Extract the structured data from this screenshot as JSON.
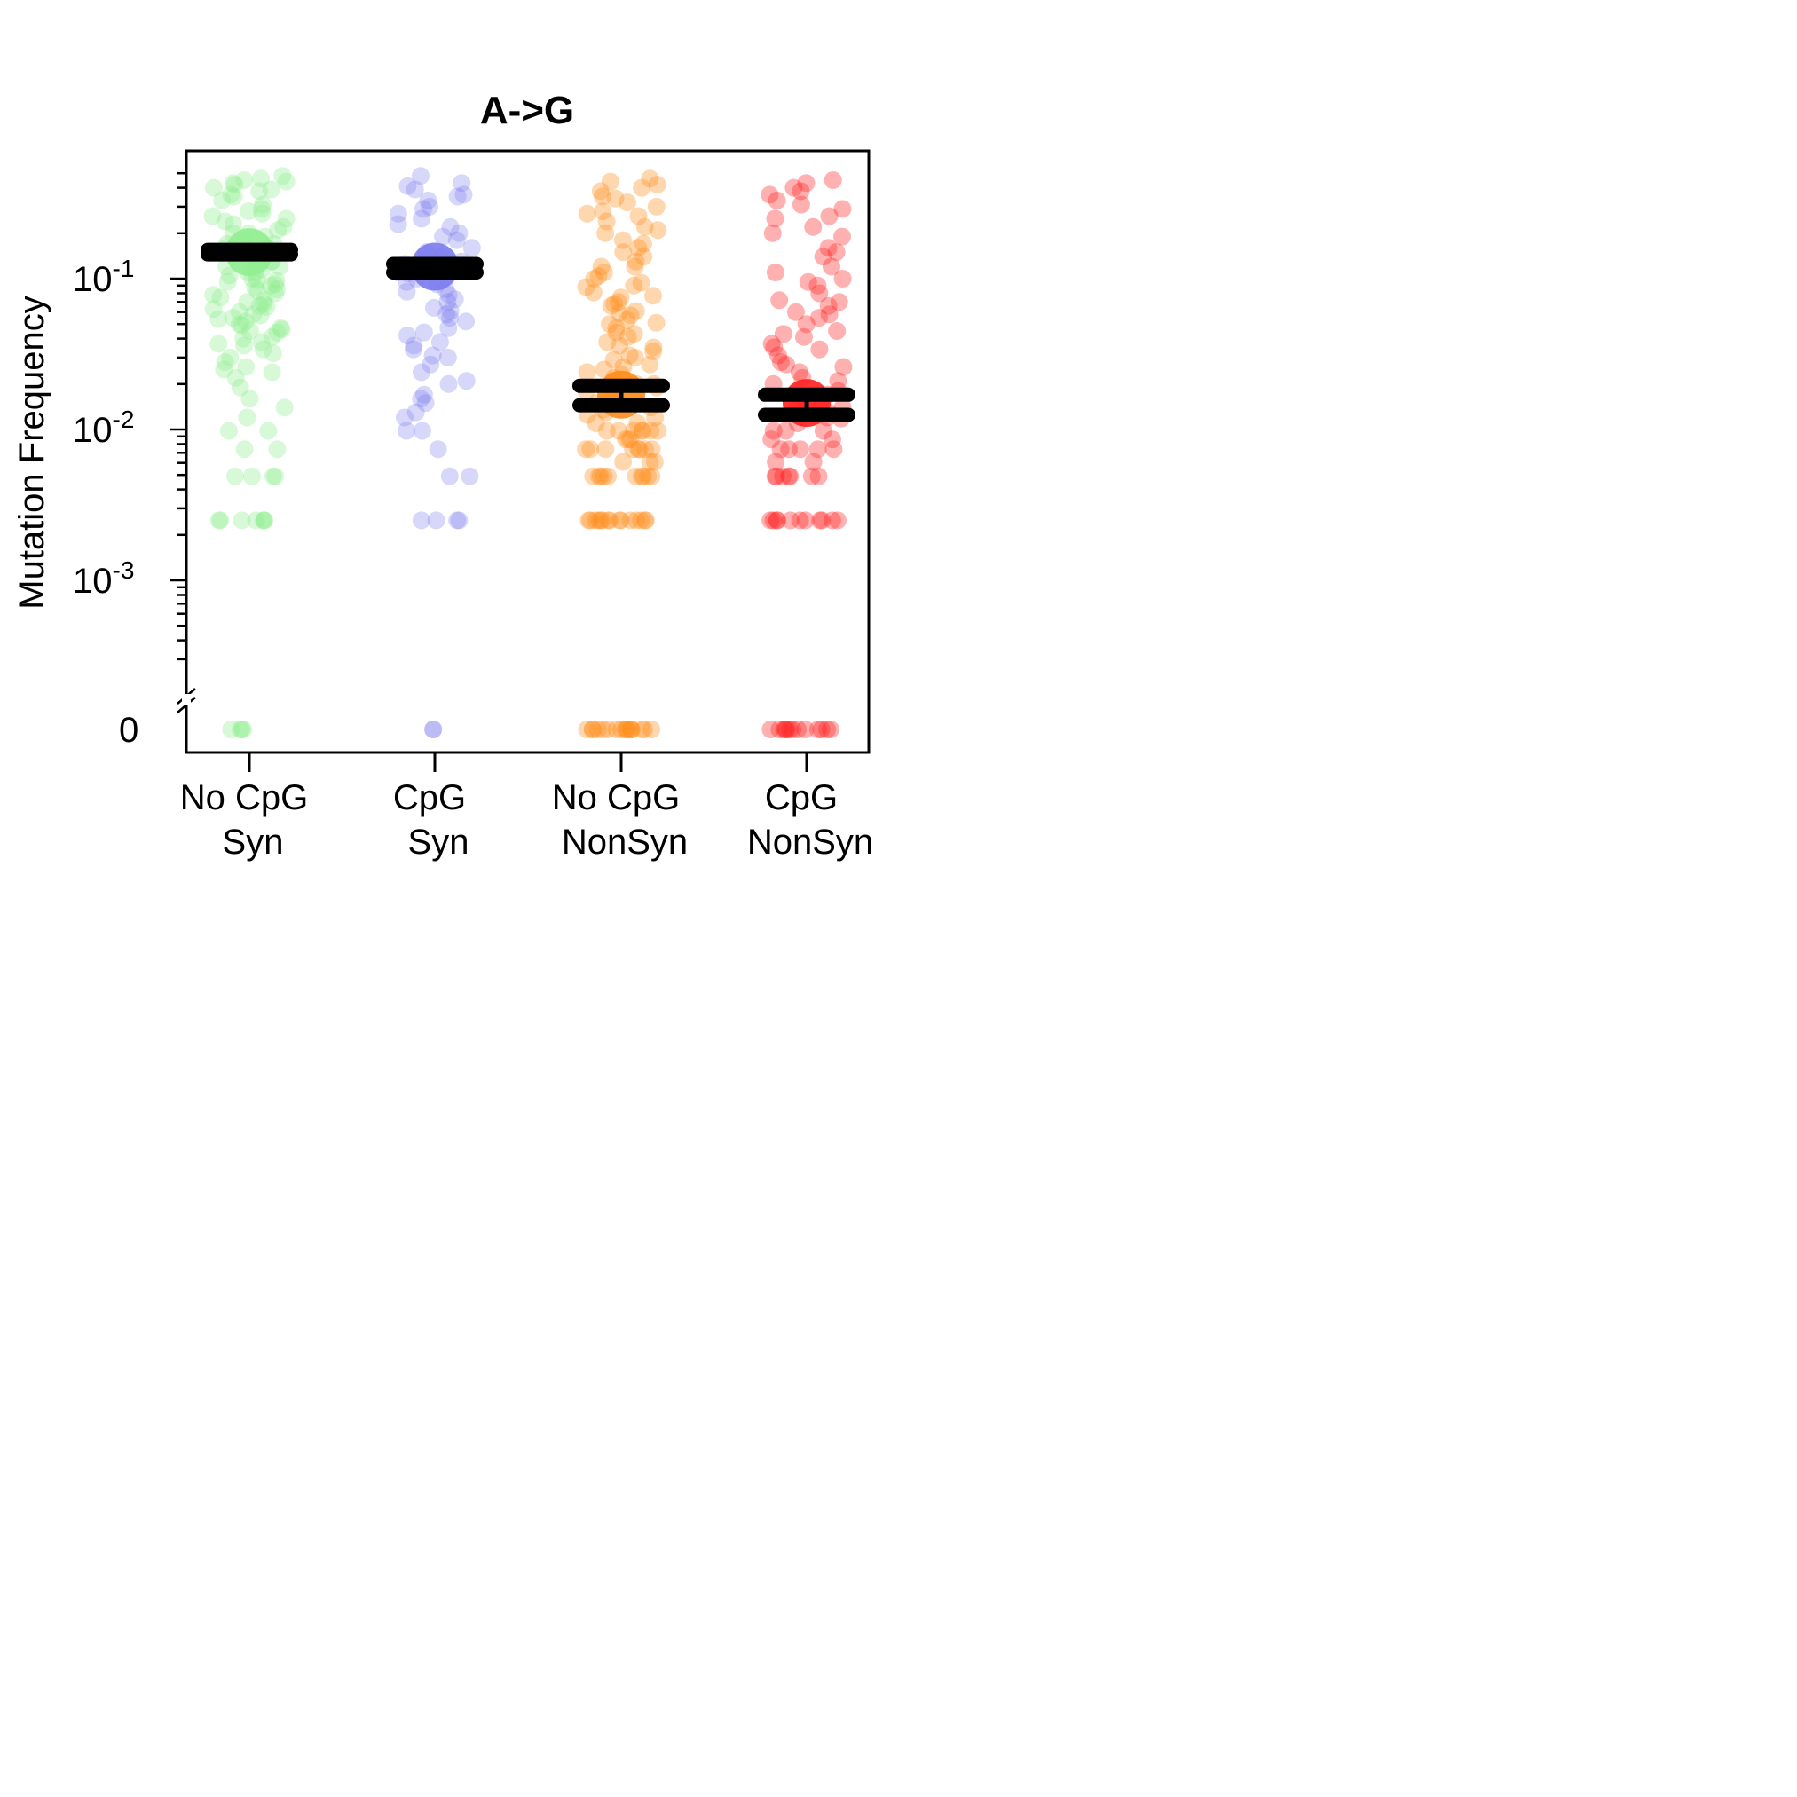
{
  "chart_data": {
    "type": "scatter",
    "title": "A->G",
    "ylabel": "Mutation Frequency",
    "xlabel": "",
    "y_scale": "log",
    "y_axis_break": true,
    "ylim": [
      0.0002,
      0.6
    ],
    "grid": false,
    "legend": "none",
    "y_tick_labels": [
      {
        "base": "10",
        "exp": "-1",
        "value": 0.1
      },
      {
        "base": "10",
        "exp": "-2",
        "value": 0.01
      },
      {
        "base": "10",
        "exp": "-3",
        "value": 0.001
      },
      {
        "base": "0",
        "exp": "",
        "value": 0
      }
    ],
    "categories": [
      {
        "line1": "No CpG",
        "line2": "Syn"
      },
      {
        "line1": "CpG",
        "line2": "Syn"
      },
      {
        "line1": "No CpG",
        "line2": "NonSyn"
      },
      {
        "line1": "CpG",
        "line2": "NonSyn"
      }
    ],
    "series": [
      {
        "color": "#90EE90",
        "point_alpha": 0.35,
        "mean": 0.15,
        "ci": [
          0.145,
          0.155
        ],
        "values": [
          0.46,
          0.42,
          0.38,
          0.44,
          0.31,
          0.27,
          0.24,
          0.21,
          0.19,
          0.17,
          0.16,
          0.14,
          0.13,
          0.12,
          0.11,
          0.105,
          0.095,
          0.09,
          0.085,
          0.08,
          0.075,
          0.07,
          0.065,
          0.06,
          0.055,
          0.05,
          0.047,
          0.044,
          0.04,
          0.036,
          0.032,
          0.028,
          0.025,
          0.022,
          0.019,
          0.016,
          0.014,
          0.012,
          0.0098,
          0.0098,
          0.0074,
          0.0074,
          0.0049,
          0.0049,
          0.0049,
          0.0049,
          0.0025,
          0.0025,
          0.0025,
          0.0025,
          0.0025,
          0.0025,
          0.0025,
          0,
          0,
          0,
          0,
          0.48,
          0.45,
          0.4,
          0.36,
          0.33,
          0.29,
          0.26,
          0.23,
          0.2,
          0.18,
          0.15,
          0.13,
          0.11,
          0.1,
          0.092,
          0.083,
          0.072,
          0.063,
          0.058,
          0.052,
          0.045,
          0.038,
          0.35,
          0.28,
          0.22,
          0.17,
          0.14,
          0.12,
          0.098,
          0.078,
          0.066,
          0.057,
          0.049,
          0.041,
          0.034,
          0.43,
          0.39,
          0.25,
          0.2,
          0.16,
          0.13,
          0.115,
          0.097,
          0.088,
          0.068,
          0.054,
          0.046,
          0.037,
          0.03,
          0.026,
          0.024
        ]
      },
      {
        "color": "#7B7BF0",
        "point_alpha": 0.3,
        "mean": 0.12,
        "ci": [
          0.11,
          0.125
        ],
        "values": [
          0.48,
          0.43,
          0.39,
          0.35,
          0.33,
          0.3,
          0.27,
          0.25,
          0.22,
          0.2,
          0.18,
          0.16,
          0.14,
          0.13,
          0.12,
          0.11,
          0.1,
          0.092,
          0.085,
          0.078,
          0.07,
          0.064,
          0.058,
          0.052,
          0.047,
          0.042,
          0.038,
          0.034,
          0.03,
          0.027,
          0.024,
          0.02,
          0.017,
          0.015,
          0.013,
          0.0098,
          0.0098,
          0.0074,
          0.0049,
          0.0049,
          0.0025,
          0.0025,
          0.0025,
          0.0025,
          0,
          0,
          0.41,
          0.36,
          0.29,
          0.23,
          0.19,
          0.15,
          0.125,
          0.108,
          0.095,
          0.082,
          0.073,
          0.061,
          0.055,
          0.044,
          0.036,
          0.031,
          0.021,
          0.016,
          0.012
        ]
      },
      {
        "color": "#FF8C1A",
        "point_alpha": 0.35,
        "mean": 0.017,
        "ci": [
          0.0145,
          0.0195
        ],
        "values": [
          0.46,
          0.44,
          0.42,
          0.38,
          0.35,
          0.32,
          0.3,
          0.28,
          0.26,
          0.24,
          0.22,
          0.2,
          0.18,
          0.16,
          0.15,
          0.13,
          0.12,
          0.11,
          0.1,
          0.094,
          0.088,
          0.081,
          0.075,
          0.07,
          0.066,
          0.061,
          0.057,
          0.053,
          0.05,
          0.047,
          0.044,
          0.041,
          0.038,
          0.035,
          0.033,
          0.031,
          0.029,
          0.027,
          0.025,
          0.024,
          0.022,
          0.021,
          0.02,
          0.019,
          0.018,
          0.017,
          0.016,
          0.015,
          0.014,
          0.013,
          0.012,
          0.011,
          0.0098,
          0.0098,
          0.0098,
          0.0098,
          0.0098,
          0.0098,
          0.0098,
          0.0086,
          0.0086,
          0.0086,
          0.0074,
          0.0074,
          0.0074,
          0.0074,
          0.0074,
          0.0074,
          0.0074,
          0.0074,
          0.0061,
          0.0061,
          0.0061,
          0.0049,
          0.0049,
          0.0049,
          0.0049,
          0.0049,
          0.0049,
          0.0049,
          0.0049,
          0.0049,
          0.0049,
          0.0025,
          0.0025,
          0.0025,
          0.0025,
          0.0025,
          0.0025,
          0.0025,
          0.0025,
          0.0025,
          0.0025,
          0.0025,
          0.0025,
          0.0025,
          0.0025,
          0.0025,
          0,
          0,
          0,
          0,
          0,
          0,
          0,
          0,
          0,
          0,
          0,
          0,
          0,
          0,
          0,
          0,
          0,
          0.4,
          0.34,
          0.27,
          0.21,
          0.17,
          0.14,
          0.12,
          0.104,
          0.09,
          0.077,
          0.068,
          0.059,
          0.051,
          0.043,
          0.036,
          0.03,
          0.026,
          0.023,
          0.02,
          0.018,
          0.0155,
          0.0135,
          0.0125,
          0.011
        ]
      },
      {
        "color": "#FF2020",
        "point_alpha": 0.35,
        "mean": 0.015,
        "ci": [
          0.0125,
          0.017
        ],
        "values": [
          0.45,
          0.43,
          0.4,
          0.36,
          0.33,
          0.29,
          0.26,
          0.22,
          0.19,
          0.16,
          0.14,
          0.12,
          0.1,
          0.09,
          0.08,
          0.072,
          0.066,
          0.06,
          0.055,
          0.05,
          0.045,
          0.041,
          0.037,
          0.034,
          0.031,
          0.028,
          0.026,
          0.024,
          0.022,
          0.02,
          0.018,
          0.016,
          0.015,
          0.014,
          0.013,
          0.012,
          0.011,
          0.0098,
          0.0098,
          0.0098,
          0.0086,
          0.0086,
          0.0074,
          0.0074,
          0.0074,
          0.0074,
          0.0074,
          0.0061,
          0.0061,
          0.0049,
          0.0049,
          0.0049,
          0.0049,
          0.0049,
          0.0049,
          0.0049,
          0.0025,
          0.0025,
          0.0025,
          0.0025,
          0.0025,
          0.0025,
          0.0025,
          0.0025,
          0.0025,
          0.0025,
          0.0025,
          0,
          0,
          0,
          0,
          0,
          0,
          0,
          0,
          0,
          0,
          0,
          0,
          0,
          0.38,
          0.31,
          0.25,
          0.2,
          0.15,
          0.11,
          0.095,
          0.07,
          0.058,
          0.043,
          0.035,
          0.027,
          0.021,
          0.017,
          0.0135,
          0.0118
        ]
      }
    ]
  }
}
